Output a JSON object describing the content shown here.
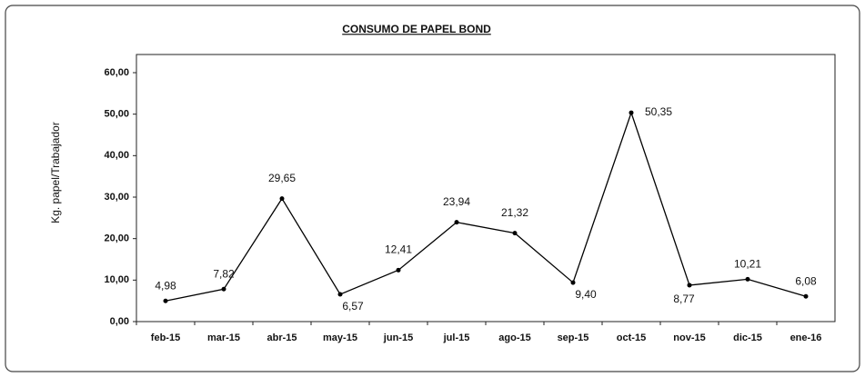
{
  "chart_data": {
    "type": "line",
    "title": "CONSUMO DE PAPEL BOND",
    "y_label": "Kg.  papel/Trabajador",
    "categories": [
      "feb-15",
      "mar-15",
      "abr-15",
      "may-15",
      "jun-15",
      "jul-15",
      "ago-15",
      "sep-15",
      "oct-15",
      "nov-15",
      "dic-15",
      "ene-16"
    ],
    "values": [
      4.98,
      7.82,
      29.65,
      6.57,
      12.41,
      23.94,
      21.32,
      9.4,
      50.35,
      8.77,
      10.21,
      6.08
    ],
    "value_labels": [
      "4,98",
      "7,82",
      "29,65",
      "6,57",
      "12,41",
      "23,94",
      "21,32",
      "9,40",
      "50,35",
      "8,77",
      "10,21",
      "6,08"
    ],
    "color": "#000000",
    "ylim": [
      0,
      60
    ],
    "yticks": [
      {
        "value": 0,
        "label": "0,00"
      },
      {
        "value": 10,
        "label": "10,00"
      },
      {
        "value": 20,
        "label": "20,00"
      },
      {
        "value": 30,
        "label": "30,00"
      },
      {
        "value": 40,
        "label": "40,00"
      },
      {
        "value": 50,
        "label": "50,00"
      },
      {
        "value": 60,
        "label": "60,00"
      }
    ]
  }
}
